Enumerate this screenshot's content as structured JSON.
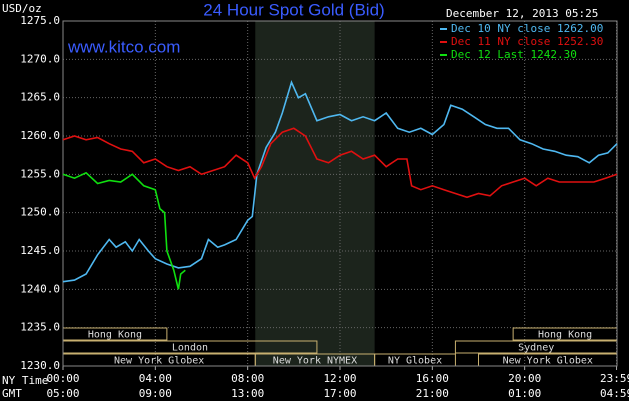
{
  "chart_data": {
    "type": "line",
    "title": "24 Hour Spot Gold (Bid)",
    "website": "www.kitco.com",
    "timestamp": "December 12, 2013 05:25",
    "y_label": "USD/oz",
    "x_label": "NY Time",
    "x2_label": "GMT",
    "ylim": [
      1230,
      1275
    ],
    "yticks": [
      {
        "value": 1230,
        "label": "1230.0"
      },
      {
        "value": 1235,
        "label": "1235.0"
      },
      {
        "value": 1240,
        "label": "1240.0"
      },
      {
        "value": 1245,
        "label": "1245.0"
      },
      {
        "value": 1250,
        "label": "1250.0"
      },
      {
        "value": 1255,
        "label": "1255.0"
      },
      {
        "value": 1260,
        "label": "1260.0"
      },
      {
        "value": 1265,
        "label": "1265.0"
      },
      {
        "value": 1270,
        "label": "1270.0"
      },
      {
        "value": 1275,
        "label": "1275.0"
      }
    ],
    "xlim": [
      0,
      24
    ],
    "xticks": [
      {
        "value": 0,
        "label": "00:00"
      },
      {
        "value": 4,
        "label": "04:00"
      },
      {
        "value": 8,
        "label": "08:00"
      },
      {
        "value": 12,
        "label": "12:00"
      },
      {
        "value": 16,
        "label": "16:00"
      },
      {
        "value": 20,
        "label": "20:00"
      },
      {
        "value": 23.98,
        "label": "23:59"
      }
    ],
    "x2ticks": [
      {
        "value": 0,
        "label": "05:00"
      },
      {
        "value": 4,
        "label": "09:00"
      },
      {
        "value": 8,
        "label": "13:00"
      },
      {
        "value": 12,
        "label": "17:00"
      },
      {
        "value": 16,
        "label": "21:00"
      },
      {
        "value": 20,
        "label": "01:00"
      },
      {
        "value": 23.98,
        "label": "04:59"
      }
    ],
    "grid": true,
    "shaded": [
      8.33,
      13.5
    ],
    "sessions": [
      [
        {
          "label": "Hong Kong",
          "start": 0,
          "end": 4.5
        },
        {
          "label": "Hong Kong",
          "start": 19.5,
          "end": 24
        }
      ],
      [
        {
          "label": "London",
          "start": 0,
          "end": 11
        },
        {
          "label": "Sydney",
          "start": 17,
          "end": 24
        }
      ],
      [
        {
          "label": "New York Globex",
          "start": 0,
          "end": 8.33
        },
        {
          "label": "New York NYMEX",
          "start": 8.33,
          "end": 13.5
        },
        {
          "label": "NY Globex",
          "start": 13.5,
          "end": 17
        },
        {
          "label": "New York Globex",
          "start": 18,
          "end": 24
        }
      ]
    ],
    "series": [
      {
        "name": "Dec 10 NY close 1262.00",
        "color": "#4fb8f0",
        "x": [
          0,
          0.5,
          1,
          1.5,
          2,
          2.3,
          2.7,
          3,
          3.3,
          3.7,
          4,
          4.5,
          5,
          5.5,
          6,
          6.3,
          6.7,
          7,
          7.5,
          8,
          8.2,
          8.4,
          8.8,
          9.2,
          9.5,
          9.9,
          10.2,
          10.5,
          11,
          11.5,
          12,
          12.5,
          13,
          13.5,
          14,
          14.5,
          15,
          15.5,
          16,
          16.5,
          16.8,
          17.3,
          17.8,
          18.3,
          18.8,
          19.3,
          19.8,
          20.3,
          20.8,
          21.3,
          21.8,
          22.3,
          22.8,
          23.2,
          23.6,
          24
        ],
        "values": [
          1241.0,
          1241.2,
          1242.0,
          1244.5,
          1246.5,
          1245.5,
          1246.2,
          1245.0,
          1246.5,
          1245.0,
          1244.0,
          1243.3,
          1242.8,
          1243.0,
          1244.0,
          1246.5,
          1245.5,
          1245.8,
          1246.5,
          1249.0,
          1249.5,
          1255.0,
          1258.5,
          1260.5,
          1263.0,
          1267.0,
          1265.0,
          1265.5,
          1262.0,
          1262.5,
          1262.8,
          1262.0,
          1262.5,
          1262.0,
          1263.0,
          1261.0,
          1260.5,
          1261.0,
          1260.2,
          1261.5,
          1264.0,
          1263.5,
          1262.5,
          1261.5,
          1261.0,
          1261.0,
          1259.5,
          1259.0,
          1258.3,
          1258.0,
          1257.5,
          1257.3,
          1256.5,
          1257.5,
          1257.8,
          1259.0
        ]
      },
      {
        "name": "Dec 11 NY close 1252.30",
        "color": "#e01010",
        "x": [
          0,
          0.5,
          1,
          1.5,
          2,
          2.5,
          3,
          3.5,
          4,
          4.5,
          5,
          5.5,
          6,
          6.5,
          7,
          7.5,
          8,
          8.3,
          8.6,
          9,
          9.5,
          10,
          10.5,
          11,
          11.5,
          12,
          12.5,
          13,
          13.5,
          14,
          14.5,
          14.9,
          15.1,
          15.5,
          16,
          16.5,
          17,
          17.5,
          18,
          18.5,
          19,
          19.5,
          20,
          20.5,
          21,
          21.5,
          22,
          22.5,
          23,
          23.5,
          24
        ],
        "values": [
          1259.5,
          1260.0,
          1259.5,
          1259.8,
          1259.0,
          1258.3,
          1258.0,
          1256.5,
          1257.0,
          1256.0,
          1255.5,
          1256.0,
          1255.0,
          1255.5,
          1256.0,
          1257.5,
          1256.5,
          1254.5,
          1256.0,
          1259.0,
          1260.5,
          1261.0,
          1260.0,
          1257.0,
          1256.5,
          1257.5,
          1258.0,
          1257.0,
          1257.5,
          1256.0,
          1257.0,
          1257.0,
          1253.5,
          1253.0,
          1253.5,
          1253.0,
          1252.5,
          1252.0,
          1252.5,
          1252.2,
          1253.5,
          1254.0,
          1254.5,
          1253.5,
          1254.5,
          1254.0,
          1254.0,
          1254.0,
          1254.0,
          1254.5,
          1255.0
        ]
      },
      {
        "name": "Dec 12 Last 1242.30",
        "color": "#10e010",
        "x": [
          0,
          0.5,
          1,
          1.5,
          2,
          2.5,
          3,
          3.5,
          4,
          4.2,
          4.4,
          4.5,
          4.8,
          5.0,
          5.1,
          5.3
        ],
        "values": [
          1255.0,
          1254.5,
          1255.2,
          1253.8,
          1254.2,
          1254.0,
          1255.0,
          1253.5,
          1253.0,
          1250.5,
          1250.0,
          1245.0,
          1242.5,
          1240.0,
          1242.0,
          1242.5
        ]
      }
    ]
  }
}
